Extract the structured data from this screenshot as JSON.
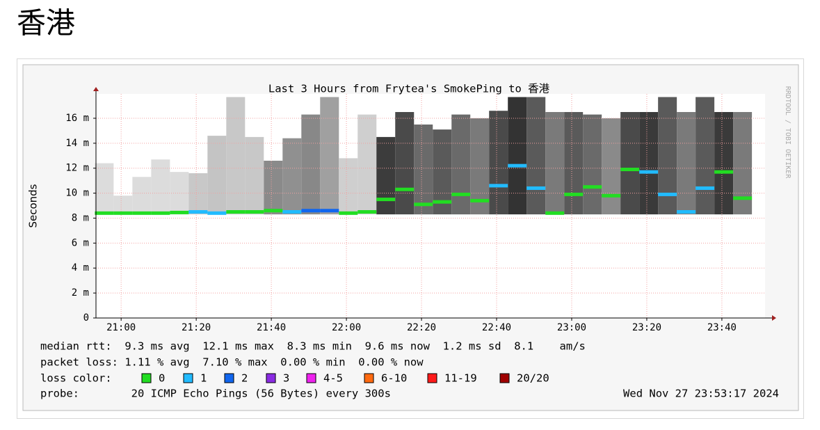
{
  "page_title": "香港",
  "chart_data": {
    "type": "smokeping",
    "title": "Last 3 Hours from Frytea's SmokePing to 香港",
    "y_label": "Seconds",
    "side_text": "RRDTOOL / TOBI OETIKER",
    "x": [
      1253,
      1258,
      1263,
      1268,
      1273,
      1278,
      1283,
      1288,
      1293,
      1298,
      1303,
      1308,
      1313,
      1318,
      1323,
      1328,
      1333,
      1338,
      1343,
      1348,
      1353,
      1358,
      1363,
      1368,
      1373,
      1378,
      1383,
      1388,
      1393,
      1398,
      1403,
      1408,
      1413,
      1418,
      1423
    ],
    "median": [
      0.0084,
      0.0084,
      0.0084,
      0.0084,
      0.00845,
      0.0085,
      0.0084,
      0.0085,
      0.0085,
      0.0086,
      0.0085,
      0.0086,
      0.0086,
      0.0084,
      0.0085,
      0.0095,
      0.0103,
      0.0091,
      0.0093,
      0.0099,
      0.0094,
      0.0106,
      0.0122,
      0.0104,
      0.0084,
      0.0099,
      0.0105,
      0.0098,
      0.0119,
      0.0117,
      0.0099,
      0.0085,
      0.0104,
      0.0117,
      0.0096
    ],
    "median_colors": [
      "#22dd22",
      "#22dd22",
      "#22dd22",
      "#22dd22",
      "#22dd22",
      "#22bbff",
      "#22bbff",
      "#22dd22",
      "#22dd22",
      "#22dd22",
      "#22bbff",
      "#1166ee",
      "#1166ee",
      "#22dd22",
      "#22dd22",
      "#22dd22",
      "#22dd22",
      "#22dd22",
      "#22dd22",
      "#22dd22",
      "#22dd22",
      "#22bbff",
      "#22bbff",
      "#22bbff",
      "#22dd22",
      "#22dd22",
      "#22dd22",
      "#22dd22",
      "#22dd22",
      "#22bbff",
      "#22bbff",
      "#22bbff",
      "#22bbff",
      "#22dd22",
      "#22dd22"
    ],
    "smoke_min": [
      0.0083,
      0.0083,
      0.0083,
      0.0083,
      0.0083,
      0.0083,
      0.0083,
      0.0083,
      0.0083,
      0.0083,
      0.0083,
      0.0083,
      0.0083,
      0.0083,
      0.0083,
      0.0083,
      0.0083,
      0.0083,
      0.0083,
      0.0083,
      0.0083,
      0.0083,
      0.0083,
      0.0083,
      0.0083,
      0.0083,
      0.0083,
      0.0083,
      0.0083,
      0.0083,
      0.0083,
      0.0083,
      0.0083,
      0.0083,
      0.0083
    ],
    "smoke_max": [
      0.0124,
      0.0098,
      0.0113,
      0.0127,
      0.0117,
      0.0116,
      0.0146,
      0.0177,
      0.0145,
      0.0126,
      0.0144,
      0.0163,
      0.0177,
      0.0128,
      0.0163,
      0.0145,
      0.0165,
      0.0155,
      0.0151,
      0.0163,
      0.016,
      0.0166,
      0.0177,
      0.0177,
      0.0165,
      0.0165,
      0.0163,
      0.016,
      0.0165,
      0.0165,
      0.0177,
      0.0165,
      0.0177,
      0.0165,
      0.0165
    ],
    "smoke_colors": [
      "#dcdcdc",
      "#dcdcdc",
      "#dcdcdc",
      "#dcdcdc",
      "#dcdcdc",
      "#c8c8c8",
      "#c4c4c4",
      "#c8c8c8",
      "#c8c8c8",
      "#8a8a8a",
      "#909090",
      "#888888",
      "#a0a0a0",
      "#cfcfcf",
      "#cfcfcf",
      "#3c3c3c",
      "#4a4a4a",
      "#6a6a6a",
      "#5a5a5a",
      "#6a6a6a",
      "#7a7a7a",
      "#4a4a4a",
      "#333333",
      "#5a5a5a",
      "#7a7a7a",
      "#5a5a5a",
      "#6a6a6a",
      "#8a8a8a",
      "#4a4a4a",
      "#3a3a3a",
      "#5a5a5a",
      "#7a7a7a",
      "#5a5a5a",
      "#3a3a3a",
      "#7a7a7a"
    ],
    "xlim": [
      1253.3,
      1431.5
    ],
    "xticks": [
      {
        "value": 1260,
        "label": "21:00"
      },
      {
        "value": 1280,
        "label": "21:20"
      },
      {
        "value": 1300,
        "label": "21:40"
      },
      {
        "value": 1320,
        "label": "22:00"
      },
      {
        "value": 1340,
        "label": "22:20"
      },
      {
        "value": 1360,
        "label": "22:40"
      },
      {
        "value": 1380,
        "label": "23:00"
      },
      {
        "value": 1400,
        "label": "23:20"
      },
      {
        "value": 1420,
        "label": "23:40"
      }
    ],
    "ylim": [
      0,
      0.01795
    ],
    "yticks": [
      0,
      {
        "value": 0.002,
        "label": "2 m"
      },
      {
        "value": 0.004,
        "label": "4 m"
      },
      {
        "value": 0.006,
        "label": "6 m"
      },
      {
        "value": 0.008,
        "label": "8 m"
      },
      {
        "value": 0.01,
        "label": "10 m"
      },
      {
        "value": 0.012,
        "label": "12 m"
      },
      {
        "value": 0.014,
        "label": "14 m"
      },
      {
        "value": 0.016,
        "label": "16 m"
      }
    ],
    "grid": true,
    "stats": [
      "median rtt:  9.3 ms avg  12.1 ms max  8.3 ms min  9.6 ms now  1.2 ms sd  8.1    am/s",
      "packet loss: 1.11 % avg  7.10 % max  0.00 % min  0.00 % now"
    ],
    "loss_title": "loss color:",
    "loss_legend": [
      {
        "label": "0",
        "color": "#22dd22"
      },
      {
        "label": "1",
        "color": "#22bbff"
      },
      {
        "label": "2",
        "color": "#1166ee"
      },
      {
        "label": "3",
        "color": "#8a2be2"
      },
      {
        "label": "4-5",
        "color": "#ee22ee"
      },
      {
        "label": "6-10",
        "color": "#ff6a10"
      },
      {
        "label": "11-19",
        "color": "#ff1a1a"
      },
      {
        "label": "20/20",
        "color": "#a00000"
      }
    ],
    "probe": "probe:        20 ICMP Echo Pings (56 Bytes) every 300s",
    "timestamp": "Wed Nov 27 23:53:17 2024"
  }
}
